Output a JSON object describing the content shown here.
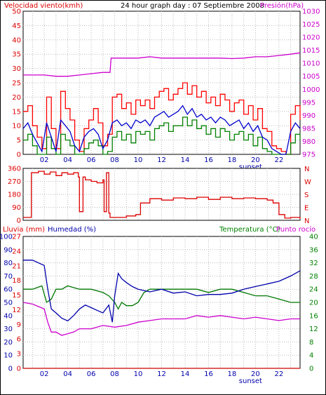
{
  "header": {
    "title": "24 hour graph day : 07 Septiembre 2008",
    "wind_label": "Velocidad viento(kmh)",
    "pressure_label": "Presión(hPa)",
    "rain_label": "Lluvia (mm)",
    "humidity_label": "Humedad (%)",
    "temp_label": "Temperatura (°C)",
    "dew_label": "Punto rocío",
    "sunset_label": "sunset"
  },
  "colors": {
    "wind_gust": "#ff0000",
    "wind_avg": "#0000cc",
    "wind_low": "#008000",
    "pressure": "#cc00cc",
    "direction": "#dd0000",
    "humidity": "#0000aa",
    "temperature": "#007700",
    "dew_point": "#cc00cc",
    "rain": "#cc0000",
    "grid": "#bbbbbb",
    "axis_left": "#dd0000",
    "axis_blue": "#0000aa",
    "axis_green": "#008000",
    "axis_magenta": "#cc00cc"
  },
  "chart_data": [
    {
      "type": "line",
      "title": "24 hour graph day : 07 Septiembre 2008",
      "x_ticks": [
        "02",
        "04",
        "06",
        "08",
        "10",
        "12",
        "14",
        "16",
        "18",
        "20",
        "22"
      ],
      "x_range": [
        0.2,
        23.8
      ],
      "left_axis": {
        "label": "Velocidad viento(kmh)",
        "range": [
          0,
          50
        ],
        "ticks": [
          "0",
          "5",
          "10",
          "15",
          "20",
          "25",
          "30",
          "35",
          "40",
          "45",
          "50"
        ]
      },
      "right_axis": {
        "label": "Presión(hPa)",
        "range": [
          975,
          1030
        ],
        "ticks": [
          "975",
          "980",
          "985",
          "990",
          "995",
          "1000",
          "1005",
          "1010",
          "1015",
          "1020",
          "1025",
          "1030"
        ]
      },
      "series": [
        {
          "name": "wind_gust",
          "axis": "left",
          "x": [
            0.2,
            0.6,
            1.0,
            1.4,
            1.8,
            2.2,
            2.6,
            3.0,
            3.4,
            3.8,
            4.2,
            4.6,
            5.0,
            5.4,
            5.8,
            6.2,
            6.6,
            7.0,
            7.4,
            7.8,
            8.2,
            8.6,
            9.0,
            9.4,
            9.8,
            10.2,
            10.6,
            11.0,
            11.4,
            11.8,
            12.2,
            12.6,
            13.0,
            13.4,
            13.8,
            14.2,
            14.6,
            15.0,
            15.4,
            15.8,
            16.2,
            16.6,
            17.0,
            17.4,
            17.8,
            18.2,
            18.6,
            19.0,
            19.4,
            19.8,
            20.2,
            20.6,
            21.0,
            21.4,
            21.8,
            22.2,
            22.6,
            23.0,
            23.4,
            23.8
          ],
          "y": [
            15,
            17,
            10,
            6,
            2,
            20,
            9,
            2,
            22,
            16,
            12,
            5,
            1,
            9,
            12,
            16,
            11,
            3,
            7,
            20,
            21,
            16,
            18,
            14,
            19,
            17,
            19,
            16,
            20,
            22,
            23,
            19,
            21,
            23,
            25,
            21,
            24,
            20,
            22,
            18,
            20,
            17,
            21,
            19,
            15,
            18,
            19,
            14,
            17,
            12,
            16,
            9,
            8,
            3,
            2,
            1,
            0,
            14,
            17,
            12
          ]
        },
        {
          "name": "wind_avg",
          "axis": "left",
          "x": [
            0.2,
            0.6,
            1.0,
            1.4,
            1.8,
            2.2,
            2.6,
            3.0,
            3.4,
            3.8,
            4.2,
            4.6,
            5.0,
            5.4,
            5.8,
            6.2,
            6.6,
            7.0,
            7.4,
            7.8,
            8.2,
            8.6,
            9.0,
            9.4,
            9.8,
            10.2,
            10.6,
            11.0,
            11.4,
            11.8,
            12.2,
            12.6,
            13.0,
            13.4,
            13.8,
            14.2,
            14.6,
            15.0,
            15.4,
            15.8,
            16.2,
            16.6,
            17.0,
            17.4,
            17.8,
            18.2,
            18.6,
            19.0,
            19.4,
            19.8,
            20.2,
            20.6,
            21.0,
            21.4,
            21.8,
            22.2,
            22.6,
            23.0,
            23.4,
            23.8
          ],
          "y": [
            9,
            11,
            7,
            4,
            1,
            11,
            6,
            1,
            12,
            10,
            8,
            3,
            1,
            6,
            8,
            9,
            7,
            2,
            5,
            11,
            12,
            10,
            11,
            9,
            12,
            11,
            12,
            10,
            13,
            14,
            15,
            13,
            14,
            15,
            17,
            14,
            16,
            13,
            14,
            12,
            13,
            11,
            13,
            12,
            10,
            11,
            12,
            9,
            11,
            8,
            10,
            6,
            5,
            2,
            1,
            0,
            0,
            8,
            11,
            9
          ]
        },
        {
          "name": "wind_low",
          "axis": "left",
          "x": [
            0.2,
            0.6,
            1.0,
            1.4,
            1.8,
            2.2,
            2.6,
            3.0,
            3.4,
            3.8,
            4.2,
            4.6,
            5.0,
            5.4,
            5.8,
            6.2,
            6.6,
            7.0,
            7.4,
            7.8,
            8.2,
            8.6,
            9.0,
            9.4,
            9.8,
            10.2,
            10.6,
            11.0,
            11.4,
            11.8,
            12.2,
            12.6,
            13.0,
            13.4,
            13.8,
            14.2,
            14.6,
            15.0,
            15.4,
            15.8,
            16.2,
            16.6,
            17.0,
            17.4,
            17.8,
            18.2,
            18.6,
            19.0,
            19.4,
            19.8,
            20.2,
            20.6,
            21.0,
            21.4,
            21.8,
            22.2,
            22.6,
            23.0,
            23.4,
            23.8
          ],
          "y": [
            5,
            7,
            3,
            0,
            0,
            6,
            2,
            0,
            7,
            5,
            3,
            0,
            0,
            2,
            4,
            5,
            3,
            0,
            1,
            6,
            8,
            5,
            7,
            4,
            8,
            7,
            8,
            5,
            9,
            10,
            11,
            8,
            10,
            10,
            13,
            10,
            12,
            9,
            10,
            7,
            9,
            6,
            9,
            8,
            5,
            7,
            8,
            5,
            7,
            3,
            6,
            2,
            1,
            0,
            0,
            0,
            0,
            4,
            7,
            5
          ]
        },
        {
          "name": "pressure",
          "axis": "right",
          "x": [
            0.2,
            1.0,
            2.0,
            3.0,
            4.0,
            5.0,
            6.0,
            7.0,
            7.6,
            7.7,
            8.0,
            9.0,
            10.0,
            11.0,
            12.0,
            13.0,
            14.0,
            15.0,
            16.0,
            17.0,
            18.0,
            19.0,
            20.0,
            21.0,
            22.0,
            23.0,
            23.8
          ],
          "y": [
            1005.5,
            1005.5,
            1005.5,
            1005,
            1005,
            1005.5,
            1006,
            1006.5,
            1006.5,
            1012,
            1012,
            1012,
            1012,
            1012.5,
            1012,
            1012,
            1012,
            1012,
            1012,
            1012,
            1011.8,
            1012,
            1012.5,
            1012.5,
            1013,
            1013.5,
            1014
          ]
        }
      ]
    },
    {
      "type": "line",
      "left_axis": {
        "range": [
          0,
          360
        ],
        "ticks": [
          "0",
          "90",
          "180",
          "270",
          "360"
        ]
      },
      "right_axis": {
        "ticks": [
          "N",
          "E",
          "S",
          "W",
          "N"
        ]
      },
      "series": [
        {
          "name": "wind_direction",
          "axis": "left",
          "x": [
            0.2,
            0.5,
            0.8,
            0.9,
            1.5,
            2.0,
            2.5,
            3.0,
            3.5,
            4.0,
            4.5,
            4.9,
            5.0,
            5.3,
            5.5,
            6.0,
            6.5,
            7.0,
            7.1,
            7.3,
            7.5,
            7.6,
            8.0,
            9.0,
            9.8,
            10.2,
            11.0,
            12.0,
            13.0,
            14.0,
            15.0,
            16.0,
            17.0,
            18.0,
            19.0,
            20.0,
            21.0,
            21.5,
            22.0,
            22.5,
            23.0,
            23.8
          ],
          "y": [
            20,
            20,
            20,
            330,
            340,
            320,
            335,
            310,
            330,
            320,
            330,
            300,
            60,
            300,
            280,
            270,
            260,
            280,
            60,
            330,
            50,
            20,
            20,
            30,
            40,
            120,
            150,
            140,
            155,
            150,
            160,
            145,
            160,
            150,
            155,
            150,
            140,
            120,
            40,
            15,
            20,
            10
          ]
        }
      ]
    },
    {
      "type": "line",
      "left_axes": [
        {
          "label": "Lluvia (mm)",
          "range": [
            0,
            27
          ],
          "ticks": [
            "0",
            "3",
            "6",
            "9",
            "12",
            "15",
            "18",
            "21",
            "24",
            "27"
          ]
        },
        {
          "label": "Humedad (%)",
          "range": [
            0,
            100
          ],
          "ticks": [
            "0",
            "10",
            "20",
            "30",
            "40",
            "50",
            "60",
            "70",
            "80",
            "90",
            "100"
          ]
        }
      ],
      "right_axes": [
        {
          "label": "Temperatura (°C)",
          "range": [
            0,
            40
          ],
          "ticks": [
            "0",
            "4",
            "8",
            "12",
            "16",
            "20",
            "24",
            "28",
            "32",
            "36",
            "40"
          ]
        },
        {
          "label": "Punto rocío",
          "range": [
            0,
            40
          ]
        }
      ],
      "series": [
        {
          "name": "humidity",
          "axis": "humidity",
          "x": [
            0.2,
            1.0,
            2.0,
            2.3,
            2.6,
            3.0,
            3.5,
            4.0,
            4.5,
            5.0,
            5.5,
            6.0,
            6.5,
            7.0,
            7.5,
            7.8,
            8.0,
            8.3,
            8.6,
            9.0,
            9.5,
            10.0,
            11.0,
            12.0,
            13.0,
            14.0,
            15.0,
            16.0,
            17.0,
            18.0,
            19.0,
            20.0,
            21.0,
            22.0,
            23.0,
            23.8
          ],
          "y": [
            82,
            82,
            78,
            60,
            45,
            42,
            38,
            36,
            40,
            45,
            48,
            46,
            44,
            42,
            48,
            35,
            55,
            72,
            68,
            65,
            62,
            60,
            58,
            60,
            57,
            58,
            55,
            56,
            56,
            57,
            60,
            62,
            64,
            66,
            70,
            74
          ]
        },
        {
          "name": "temperature",
          "axis": "temperature",
          "x": [
            0.2,
            1.0,
            1.8,
            2.2,
            2.6,
            3.0,
            3.5,
            4.0,
            5.0,
            6.0,
            7.0,
            7.5,
            8.0,
            8.3,
            8.6,
            9.0,
            9.5,
            10.0,
            10.5,
            11.0,
            12.0,
            13.0,
            14.0,
            15.0,
            16.0,
            17.0,
            18.0,
            19.0,
            20.0,
            21.0,
            22.0,
            23.0,
            23.8
          ],
          "y": [
            24,
            24,
            25,
            20,
            21,
            24,
            24,
            25,
            24,
            24,
            23,
            22,
            20,
            18,
            20,
            19,
            19,
            20,
            23,
            24,
            24,
            24,
            24,
            24,
            23,
            24,
            24,
            23,
            22,
            22,
            21,
            20,
            20
          ]
        },
        {
          "name": "dew_point",
          "axis": "temperature",
          "x": [
            0.2,
            1.0,
            2.0,
            2.3,
            2.6,
            3.0,
            3.5,
            4.0,
            4.5,
            5.0,
            6.0,
            7.0,
            8.0,
            9.0,
            10.0,
            11.0,
            12.0,
            13.0,
            14.0,
            15.0,
            16.0,
            17.0,
            18.0,
            19.0,
            20.0,
            21.0,
            22.0,
            23.0,
            23.8
          ],
          "y": [
            20,
            19.5,
            18,
            14,
            11,
            11,
            10,
            10.5,
            11,
            12,
            12,
            13,
            12.5,
            13,
            14,
            14.5,
            15,
            15,
            15,
            16,
            15.5,
            16,
            15.5,
            15,
            15.5,
            15,
            14.5,
            15,
            15
          ]
        },
        {
          "name": "rain",
          "axis": "rain",
          "x": [
            0.2,
            23.8
          ],
          "y": [
            0,
            0
          ]
        }
      ]
    }
  ]
}
